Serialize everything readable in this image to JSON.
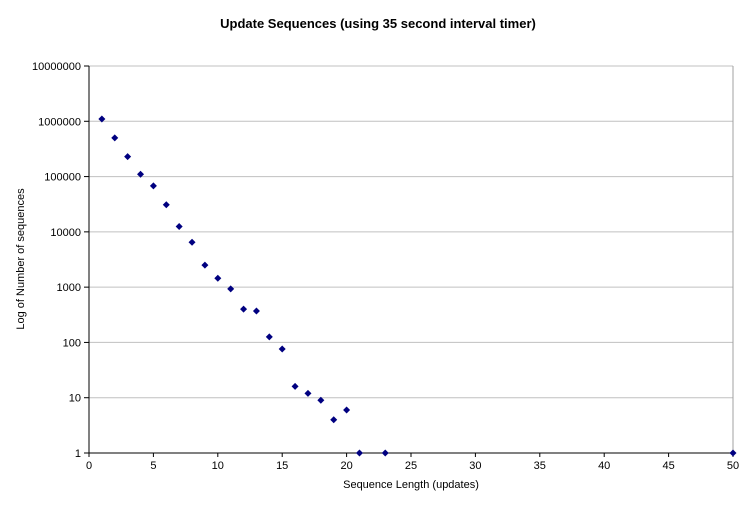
{
  "chart": {
    "title": "Update Sequences (using 35 second interval timer)",
    "xlabel": "Sequence Length (updates)",
    "ylabel": "Log of Number of sequences"
  },
  "chart_data": {
    "type": "scatter",
    "title": "Update Sequences (using 35 second interval timer)",
    "xlabel": "Sequence Length (updates)",
    "ylabel": "Log of Number of sequences",
    "x": [
      1,
      2,
      3,
      4,
      5,
      6,
      7,
      8,
      9,
      10,
      11,
      12,
      13,
      14,
      15,
      16,
      17,
      18,
      19,
      20,
      21,
      23,
      50
    ],
    "y": [
      1100000,
      500000,
      230000,
      110000,
      68000,
      31000,
      12500,
      6500,
      2500,
      1450,
      930,
      400,
      370,
      126,
      76,
      16,
      12,
      9,
      4,
      6,
      1,
      1,
      1
    ],
    "xlim": [
      0,
      50
    ],
    "x_ticks": [
      0,
      5,
      10,
      15,
      20,
      25,
      30,
      35,
      40,
      45,
      50
    ],
    "y_scale": "log",
    "ylim": [
      1,
      10000000
    ],
    "y_ticks": [
      1,
      10,
      100,
      1000,
      10000,
      100000,
      1000000,
      10000000
    ],
    "grid": "horizontal",
    "legend": "none",
    "marker": {
      "shape": "diamond",
      "color": "#000080",
      "size": 7
    },
    "colors": {
      "gridline": "#c0c0c0",
      "axis": "#000000",
      "plot_right_border": "#a0a0a0",
      "background": "#ffffff"
    }
  }
}
